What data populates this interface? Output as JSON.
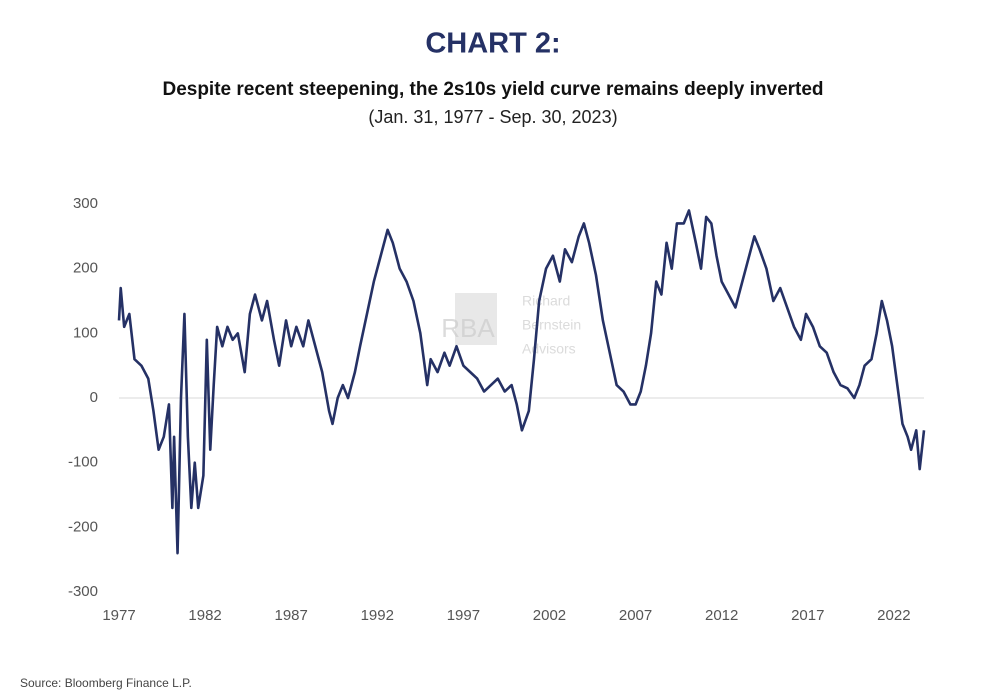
{
  "chart_data": {
    "type": "line",
    "title": "CHART 2:",
    "subtitle": "Despite recent steepening, the 2s10s yield curve remains deeply inverted",
    "date_range": "(Jan. 31, 1977 - Sep. 30, 2023)",
    "source": "Source: Bloomberg Finance L.P.",
    "watermark": [
      "RBA",
      "Richard",
      "Bernstein",
      "Advisors"
    ],
    "xlim": [
      1977,
      2023.75
    ],
    "xticks": [
      1977,
      1982,
      1987,
      1992,
      1997,
      2002,
      2007,
      2012,
      2017,
      2022
    ],
    "ylim": [
      -300,
      300
    ],
    "yticks": [
      -300,
      -200,
      -100,
      0,
      100,
      200,
      300
    ],
    "zero_line": true,
    "series": [
      {
        "color": "#253165",
        "x": [
          1977.0,
          1977.1,
          1977.3,
          1977.6,
          1977.9,
          1978.3,
          1978.7,
          1979.0,
          1979.3,
          1979.6,
          1979.9,
          1980.1,
          1980.2,
          1980.4,
          1980.6,
          1980.8,
          1981.0,
          1981.2,
          1981.4,
          1981.6,
          1981.9,
          1982.1,
          1982.3,
          1982.5,
          1982.7,
          1983.0,
          1983.3,
          1983.6,
          1983.9,
          1984.3,
          1984.6,
          1984.9,
          1985.3,
          1985.6,
          1986.0,
          1986.3,
          1986.7,
          1987.0,
          1987.3,
          1987.7,
          1988.0,
          1988.4,
          1988.8,
          1989.2,
          1989.4,
          1989.7,
          1990.0,
          1990.3,
          1990.7,
          1991.0,
          1991.4,
          1991.8,
          1992.2,
          1992.6,
          1992.9,
          1993.3,
          1993.7,
          1994.1,
          1994.5,
          1994.9,
          1995.1,
          1995.5,
          1995.9,
          1996.2,
          1996.6,
          1997.0,
          1997.4,
          1997.8,
          1998.2,
          1998.6,
          1999.0,
          1999.4,
          1999.8,
          2000.1,
          2000.4,
          2000.8,
          2001.1,
          2001.4,
          2001.8,
          2002.2,
          2002.6,
          2002.9,
          2003.3,
          2003.7,
          2004.0,
          2004.3,
          2004.7,
          2005.1,
          2005.5,
          2005.9,
          2006.3,
          2006.7,
          2007.0,
          2007.3,
          2007.6,
          2007.9,
          2008.2,
          2008.5,
          2008.8,
          2009.1,
          2009.4,
          2009.8,
          2010.1,
          2010.5,
          2010.8,
          2011.1,
          2011.4,
          2011.7,
          2012.0,
          2012.4,
          2012.8,
          2013.1,
          2013.5,
          2013.9,
          2014.2,
          2014.6,
          2015.0,
          2015.4,
          2015.8,
          2016.2,
          2016.6,
          2016.9,
          2017.3,
          2017.7,
          2018.1,
          2018.5,
          2018.9,
          2019.3,
          2019.7,
          2020.0,
          2020.3,
          2020.7,
          2021.0,
          2021.3,
          2021.6,
          2021.9,
          2022.2,
          2022.5,
          2022.8,
          2023.0,
          2023.3,
          2023.5,
          2023.75
        ],
        "values": [
          120,
          170,
          110,
          130,
          60,
          50,
          30,
          -20,
          -80,
          -60,
          -10,
          -170,
          -60,
          -240,
          0,
          130,
          -60,
          -170,
          -100,
          -170,
          -120,
          90,
          -80,
          20,
          110,
          80,
          110,
          90,
          100,
          40,
          130,
          160,
          120,
          150,
          90,
          50,
          120,
          80,
          110,
          80,
          120,
          80,
          40,
          -20,
          -40,
          0,
          20,
          0,
          40,
          80,
          130,
          180,
          220,
          260,
          240,
          200,
          180,
          150,
          100,
          20,
          60,
          40,
          70,
          50,
          80,
          50,
          40,
          30,
          10,
          20,
          30,
          10,
          20,
          -10,
          -50,
          -20,
          60,
          150,
          200,
          220,
          180,
          230,
          210,
          250,
          270,
          240,
          190,
          120,
          70,
          20,
          10,
          -10,
          -10,
          10,
          50,
          100,
          180,
          160,
          240,
          200,
          270,
          270,
          290,
          240,
          200,
          280,
          270,
          220,
          180,
          160,
          140,
          170,
          210,
          250,
          230,
          200,
          150,
          170,
          140,
          110,
          90,
          130,
          110,
          80,
          70,
          40,
          20,
          15,
          0,
          20,
          50,
          60,
          100,
          150,
          120,
          80,
          20,
          -40,
          -60,
          -80,
          -50,
          -110,
          -50
        ]
      }
    ]
  }
}
